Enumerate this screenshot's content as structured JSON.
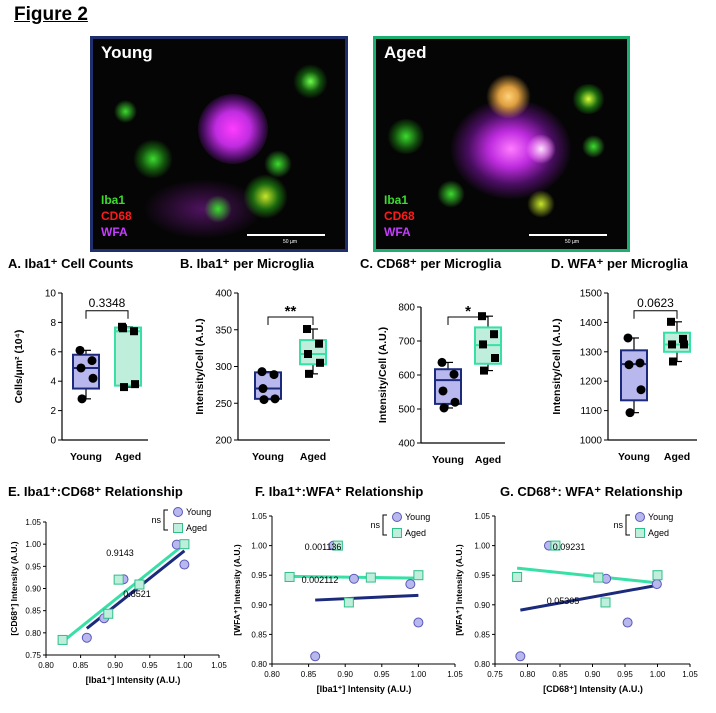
{
  "figure_title": "Figure 2",
  "colors": {
    "young_border": "#1f2f6b",
    "aged_border": "#1fae72",
    "young_fill": "#b9b8ee",
    "young_line": "#1b2a7a",
    "aged_fill": "#bfeedd",
    "aged_line": "#38e0a6",
    "iba1": "#3cdc2e",
    "cd68": "#ff1a1a",
    "wfa": "#c63cff"
  },
  "images": [
    {
      "title": "Young",
      "channels": [
        "Iba1",
        "CD68",
        "WFA"
      ],
      "scale": "50 µm"
    },
    {
      "title": "Aged",
      "channels": [
        "Iba1",
        "CD68",
        "WFA"
      ],
      "scale": "50 µm"
    }
  ],
  "chart_data": [
    {
      "type": "box",
      "panel": "A.",
      "title": "Iba1⁺ Cell Counts",
      "ylabel": "Cells/µm² (10⁴)",
      "ylim": [
        0,
        10
      ],
      "yticks": [
        0,
        2,
        4,
        6,
        8,
        10
      ],
      "categories": [
        "Young",
        "Aged"
      ],
      "series": [
        {
          "name": "Young",
          "values": [
            6.1,
            5.4,
            4.9,
            4.2,
            2.8
          ],
          "box": {
            "min": 2.8,
            "q1": 3.5,
            "median": 4.9,
            "q3": 5.8,
            "max": 6.1
          }
        },
        {
          "name": "Aged",
          "values": [
            7.7,
            7.4,
            7.6,
            3.8,
            3.6
          ],
          "box": {
            "min": 3.6,
            "q1": 3.7,
            "median": 7.4,
            "q3": 7.65,
            "max": 7.7
          }
        }
      ],
      "annotation": "0.3348"
    },
    {
      "type": "box",
      "panel": "B.",
      "title": "Iba1⁺ per Microglia",
      "ylabel": "Intensity/Cell (A.U.)",
      "ylim": [
        200,
        400
      ],
      "yticks": [
        200,
        250,
        300,
        350,
        400
      ],
      "categories": [
        "Young",
        "Aged"
      ],
      "series": [
        {
          "name": "Young",
          "values": [
            293,
            289,
            270,
            256,
            255
          ],
          "box": {
            "min": 255,
            "q1": 256,
            "median": 270,
            "q3": 292,
            "max": 293
          }
        },
        {
          "name": "Aged",
          "values": [
            351,
            331,
            317,
            305,
            290
          ],
          "box": {
            "min": 290,
            "q1": 303,
            "median": 317,
            "q3": 336,
            "max": 351
          }
        }
      ],
      "annotation": "**"
    },
    {
      "type": "box",
      "panel": "C.",
      "title": "CD68⁺ per Microglia",
      "ylabel": "Intensity/Cell (A.U.)",
      "ylim": [
        400,
        800
      ],
      "yticks": [
        400,
        500,
        600,
        700,
        800
      ],
      "categories": [
        "Young",
        "Aged"
      ],
      "series": [
        {
          "name": "Young",
          "values": [
            637,
            602,
            553,
            520,
            503
          ],
          "box": {
            "min": 503,
            "q1": 515,
            "median": 585,
            "q3": 617,
            "max": 637
          }
        },
        {
          "name": "Aged",
          "values": [
            773,
            720,
            690,
            650,
            613
          ],
          "box": {
            "min": 613,
            "q1": 633,
            "median": 688,
            "q3": 740,
            "max": 773
          }
        }
      ],
      "annotation": "*"
    },
    {
      "type": "box",
      "panel": "D.",
      "title": "WFA⁺ per Microglia",
      "ylabel": "Intensity/Cell (A.U.)",
      "ylim": [
        1000,
        1500
      ],
      "yticks": [
        1000,
        1100,
        1200,
        1300,
        1400,
        1500
      ],
      "categories": [
        "Young",
        "Aged"
      ],
      "series": [
        {
          "name": "Young",
          "values": [
            1347,
            1262,
            1256,
            1171,
            1093
          ],
          "box": {
            "min": 1093,
            "q1": 1135,
            "median": 1258,
            "q3": 1305,
            "max": 1347
          }
        },
        {
          "name": "Aged",
          "values": [
            1402,
            1344,
            1325,
            1325,
            1267
          ],
          "box": {
            "min": 1267,
            "q1": 1300,
            "median": 1325,
            "q3": 1365,
            "max": 1402
          }
        }
      ],
      "annotation": "0.0623"
    },
    {
      "type": "scatter",
      "panel": "E.",
      "title": "Iba1⁺:CD68⁺ Relationship",
      "xlabel": "[Iba1⁺] Intensity (A.U.)",
      "ylabel": "[CD68⁺] Intensity (A.U.)",
      "xlim": [
        0.8,
        1.05
      ],
      "ylim": [
        0.75,
        1.05
      ],
      "xticks": [
        0.8,
        0.85,
        0.9,
        0.95,
        1.0,
        1.05
      ],
      "yticks": [
        0.75,
        0.8,
        0.85,
        0.9,
        0.95,
        1.0,
        1.05
      ],
      "xtick_labels": [
        "0.80",
        "0.85",
        "0.90",
        "0.95",
        "1.00",
        "1.05"
      ],
      "ytick_labels": [
        "0.75",
        "0.80",
        "0.85",
        "0.90",
        "0.95",
        "1.00",
        "1.05"
      ],
      "series": [
        {
          "name": "Young",
          "x": [
            0.859,
            0.884,
            0.912,
            0.989,
            1.0
          ],
          "y": [
            0.789,
            0.833,
            0.921,
            0.999,
            0.954
          ],
          "fit": {
            "x": [
              0.859,
              1.0
            ],
            "y": [
              0.81,
              0.985
            ]
          },
          "r2": "0.8521"
        },
        {
          "name": "Aged",
          "x": [
            0.824,
            0.89,
            0.905,
            0.935,
            1.0
          ],
          "y": [
            0.784,
            0.843,
            0.92,
            0.909,
            1.0
          ],
          "fit": {
            "x": [
              0.824,
              1.0
            ],
            "y": [
              0.78,
              1.0
            ]
          },
          "r2": "0.9143"
        }
      ],
      "legend": {
        "young": "Young",
        "aged": "Aged"
      },
      "comparison": "ns"
    },
    {
      "type": "scatter",
      "panel": "F.",
      "title": "Iba1⁺:WFA⁺ Relationship",
      "xlabel": "[Iba1⁺] Intensity (A.U.)",
      "ylabel": "[WFA⁺] Intensity (A.U.)",
      "xlim": [
        0.8,
        1.05
      ],
      "ylim": [
        0.8,
        1.05
      ],
      "xticks": [
        0.8,
        0.85,
        0.9,
        0.95,
        1.0,
        1.05
      ],
      "yticks": [
        0.8,
        0.85,
        0.9,
        0.95,
        1.0,
        1.05
      ],
      "xtick_labels": [
        "0.80",
        "0.85",
        "0.90",
        "0.95",
        "1.00",
        "1.05"
      ],
      "ytick_labels": [
        "0.80",
        "0.85",
        "0.90",
        "0.95",
        "1.00",
        "1.05"
      ],
      "series": [
        {
          "name": "Young",
          "x": [
            0.859,
            0.884,
            0.912,
            0.989,
            1.0
          ],
          "y": [
            0.813,
            1.0,
            0.944,
            0.935,
            0.87
          ],
          "fit": {
            "x": [
              0.859,
              1.0
            ],
            "y": [
              0.908,
              0.916
            ]
          },
          "r2": "0.002112"
        },
        {
          "name": "Aged",
          "x": [
            0.824,
            0.89,
            0.905,
            0.935,
            1.0
          ],
          "y": [
            0.947,
            1.0,
            0.904,
            0.946,
            0.95
          ],
          "fit": {
            "x": [
              0.824,
              1.0
            ],
            "y": [
              0.948,
              0.945
            ]
          },
          "r2": "0.001136"
        }
      ],
      "legend": {
        "young": "Young",
        "aged": "Aged"
      },
      "comparison": "ns"
    },
    {
      "type": "scatter",
      "panel": "G.",
      "title": "CD68⁺: WFA⁺ Relationship",
      "xlabel": "[CD68⁺] Intensity (A.U.)",
      "ylabel": "[WFA⁺] Intensity (A.U.)",
      "xlim": [
        0.75,
        1.05
      ],
      "ylim": [
        0.8,
        1.05
      ],
      "xticks": [
        0.75,
        0.8,
        0.85,
        0.9,
        0.95,
        1.0,
        1.05
      ],
      "yticks": [
        0.8,
        0.85,
        0.9,
        0.95,
        1.0,
        1.05
      ],
      "xtick_labels": [
        "0.75",
        "0.80",
        "0.85",
        "0.90",
        "0.95",
        "1.00",
        "1.05"
      ],
      "ytick_labels": [
        "0.80",
        "0.85",
        "0.90",
        "0.95",
        "1.00",
        "1.05"
      ],
      "series": [
        {
          "name": "Young",
          "x": [
            0.789,
            0.833,
            0.921,
            0.954,
            0.999
          ],
          "y": [
            0.813,
            1.0,
            0.944,
            0.87,
            0.935
          ],
          "fit": {
            "x": [
              0.789,
              1.0
            ],
            "y": [
              0.891,
              0.933
            ]
          },
          "r2": "0.05305"
        },
        {
          "name": "Aged",
          "x": [
            0.784,
            0.843,
            0.909,
            0.92,
            1.0
          ],
          "y": [
            0.947,
            1.0,
            0.946,
            0.904,
            0.95
          ],
          "fit": {
            "x": [
              0.784,
              1.0
            ],
            "y": [
              0.962,
              0.937
            ]
          },
          "r2": "0.09231"
        }
      ],
      "legend": {
        "young": "Young",
        "aged": "Aged"
      },
      "comparison": "ns"
    }
  ]
}
